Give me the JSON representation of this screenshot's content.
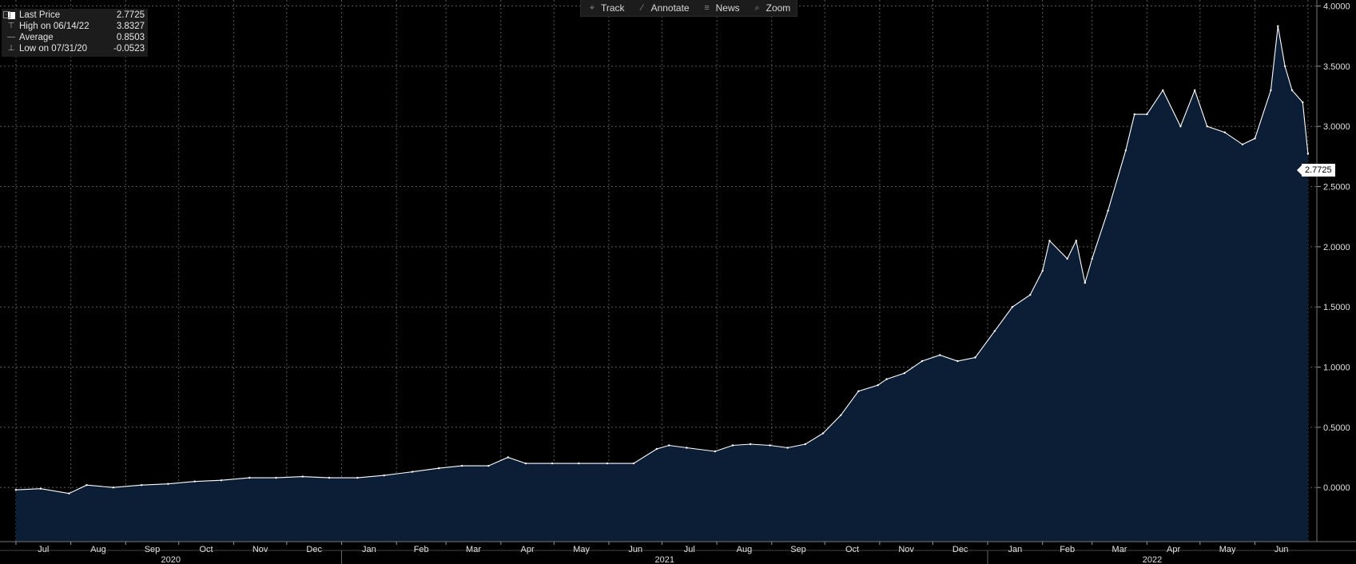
{
  "toolbar": {
    "items": [
      {
        "label": "Track",
        "icon": "crosshair-icon"
      },
      {
        "label": "Annotate",
        "icon": "pencil-icon"
      },
      {
        "label": "News",
        "icon": "news-icon"
      },
      {
        "label": "Zoom",
        "icon": "magnifier-icon"
      }
    ]
  },
  "legend": {
    "rows": [
      {
        "label": "Last Price",
        "value": "2.7725"
      },
      {
        "label": "High on 06/14/22",
        "value": "3.8327"
      },
      {
        "label": "Average",
        "value": "0.8503"
      },
      {
        "label": "Low on 07/31/20",
        "value": "-0.0523"
      }
    ]
  },
  "last_price_tag": "2.7725",
  "colors": {
    "background": "#000000",
    "area_fill": "#0b1e36",
    "line": "#ffffff",
    "grid": "#5a5a5a"
  },
  "chart_data": {
    "type": "area",
    "x_unit": "date",
    "series": [
      {
        "values_x": [
          "2020-07-01",
          "2020-07-15",
          "2020-07-31",
          "2020-08-10",
          "2020-08-25",
          "2020-09-10",
          "2020-09-25",
          "2020-10-10",
          "2020-10-25",
          "2020-11-10",
          "2020-11-25",
          "2020-12-10",
          "2020-12-25",
          "2021-01-10",
          "2021-01-25",
          "2021-02-10",
          "2021-02-25",
          "2021-03-10",
          "2021-03-25",
          "2021-04-05",
          "2021-04-15",
          "2021-04-30",
          "2021-05-15",
          "2021-05-31",
          "2021-06-15",
          "2021-06-28",
          "2021-07-05",
          "2021-07-15",
          "2021-07-31",
          "2021-08-10",
          "2021-08-20",
          "2021-08-31",
          "2021-09-10",
          "2021-09-20",
          "2021-09-30",
          "2021-10-10",
          "2021-10-20",
          "2021-10-31",
          "2021-11-05",
          "2021-11-15",
          "2021-11-25",
          "2021-12-05",
          "2021-12-15",
          "2021-12-25",
          "2022-01-05",
          "2022-01-15",
          "2022-01-25",
          "2022-02-01",
          "2022-02-05",
          "2022-02-15",
          "2022-02-20",
          "2022-02-25",
          "2022-03-01",
          "2022-03-10",
          "2022-03-20",
          "2022-03-25",
          "2022-04-01",
          "2022-04-10",
          "2022-04-20",
          "2022-04-28",
          "2022-05-05",
          "2022-05-15",
          "2022-05-25",
          "2022-06-01",
          "2022-06-10",
          "2022-06-14",
          "2022-06-18",
          "2022-06-22",
          "2022-06-28",
          "2022-07-01"
        ],
        "values": [
          -0.02,
          -0.01,
          -0.05,
          0.02,
          0.0,
          0.02,
          0.03,
          0.05,
          0.06,
          0.08,
          0.08,
          0.09,
          0.08,
          0.08,
          0.1,
          0.13,
          0.16,
          0.18,
          0.18,
          0.25,
          0.2,
          0.2,
          0.2,
          0.2,
          0.2,
          0.32,
          0.35,
          0.33,
          0.3,
          0.35,
          0.36,
          0.35,
          0.33,
          0.36,
          0.45,
          0.6,
          0.8,
          0.85,
          0.9,
          0.95,
          1.05,
          1.1,
          1.05,
          1.08,
          1.3,
          1.5,
          1.6,
          1.8,
          2.05,
          1.9,
          2.05,
          1.7,
          1.9,
          2.3,
          2.8,
          3.1,
          3.1,
          3.3,
          3.0,
          3.3,
          3.0,
          2.95,
          2.85,
          2.9,
          3.3,
          3.8327,
          3.5,
          3.3,
          3.2,
          2.7725
        ]
      }
    ],
    "ylim": [
      -0.45,
      4.05
    ],
    "y_ticks": [
      "4.0000",
      "3.5000",
      "3.0000",
      "2.5000",
      "2.0000",
      "1.5000",
      "1.0000",
      "0.5000",
      "0.0000"
    ],
    "y_tick_values": [
      4.0,
      3.5,
      3.0,
      2.5,
      2.0,
      1.5,
      1.0,
      0.5,
      0.0
    ],
    "months": [
      "Jul",
      "Aug",
      "Sep",
      "Oct",
      "Nov",
      "Dec",
      "Jan",
      "Feb",
      "Mar",
      "Apr",
      "May",
      "Jun",
      "Jul",
      "Aug",
      "Sep",
      "Oct",
      "Nov",
      "Dec",
      "Jan",
      "Feb",
      "Mar",
      "Apr",
      "May",
      "Jun"
    ],
    "years": [
      "2020",
      "2021",
      "2022"
    ],
    "grid": true,
    "y_axis_side": "right"
  }
}
